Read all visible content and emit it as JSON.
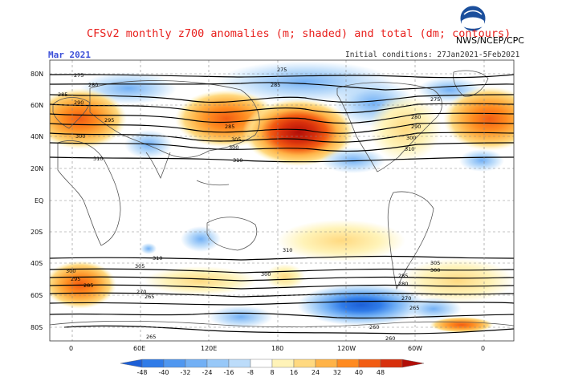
{
  "title": "CFSv2 monthly z700 anomalies (m; shaded) and total (dm; contours)",
  "agency": "NWS/NCEP/CPC",
  "month": "Mar 2021",
  "initial_conditions": "Initial conditions: 27Jan2021-5Feb2021",
  "logo_text": "NOAA",
  "lat_labels": [
    "80N",
    "60N",
    "40N",
    "20N",
    "EQ",
    "20S",
    "40S",
    "60S",
    "80S"
  ],
  "lon_labels": [
    "0",
    "60E",
    "120E",
    "180",
    "120W",
    "60W",
    "0"
  ],
  "colorbar": {
    "ticks": [
      "-48",
      "-40",
      "-32",
      "-24",
      "-16",
      "-8",
      "8",
      "16",
      "24",
      "32",
      "40",
      "48"
    ],
    "colors": [
      "#1d5fd6",
      "#2f7be8",
      "#4f97f0",
      "#72b0f5",
      "#97c8f8",
      "#bcdcfa",
      "#ffffff",
      "#fff3b8",
      "#ffd980",
      "#ffb347",
      "#ff8a1f",
      "#f25c12",
      "#d8300c",
      "#b20e08"
    ]
  },
  "contour_labels": [
    "275",
    "280",
    "285",
    "290",
    "295",
    "300",
    "305",
    "310",
    "260",
    "265",
    "270"
  ]
}
